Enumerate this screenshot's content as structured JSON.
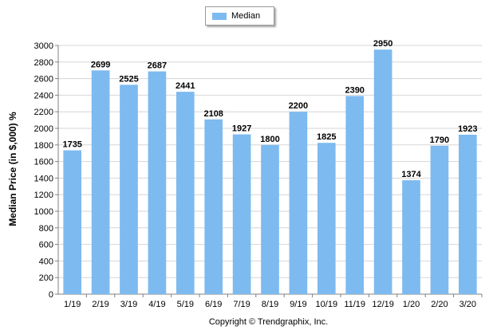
{
  "legend": {
    "label": "Median",
    "color": "#7dbaf0"
  },
  "footer": {
    "copyright": "Copyright © Trendgraphix, Inc."
  },
  "chart_data": {
    "type": "bar",
    "categories": [
      "1/19",
      "2/19",
      "3/19",
      "4/19",
      "5/19",
      "6/19",
      "7/19",
      "8/19",
      "9/19",
      "10/19",
      "11/19",
      "12/19",
      "1/20",
      "2/20",
      "3/20"
    ],
    "series": [
      {
        "name": "Median",
        "values": [
          1735,
          2699,
          2525,
          2687,
          2441,
          2108,
          1927,
          1800,
          2200,
          1825,
          2390,
          2950,
          1374,
          1790,
          1923
        ]
      }
    ],
    "ylabel": "Median Price (in $,000) %",
    "xlabel": "",
    "ylim": [
      0,
      3000
    ],
    "yticks": [
      0,
      200,
      400,
      600,
      800,
      1000,
      1200,
      1400,
      1600,
      1800,
      2000,
      2200,
      2400,
      2600,
      2800,
      3000
    ],
    "grid": true,
    "legend_position": "top-center",
    "bar_color": "#7dbaf0",
    "data_labels": true
  }
}
